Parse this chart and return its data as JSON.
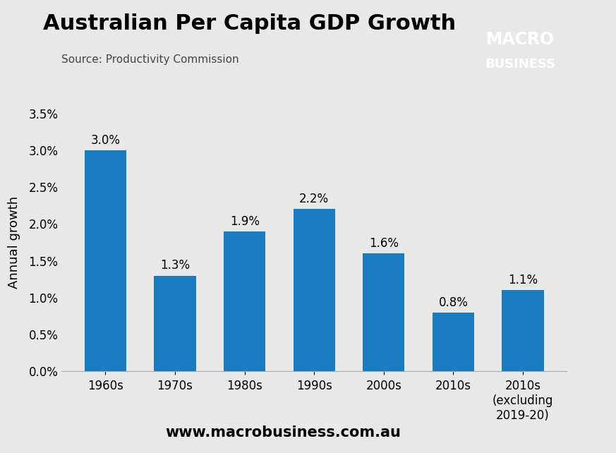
{
  "title": "Australian Per Capita GDP Growth",
  "source": "Source: Productivity Commission",
  "categories": [
    "1960s",
    "1970s",
    "1980s",
    "1990s",
    "2000s",
    "2010s",
    "2010s\n(excluding\n2019-20)"
  ],
  "values": [
    3.0,
    1.3,
    1.9,
    2.2,
    1.6,
    0.8,
    1.1
  ],
  "labels": [
    "3.0%",
    "1.3%",
    "1.9%",
    "2.2%",
    "1.6%",
    "0.8%",
    "1.1%"
  ],
  "bar_color": "#1a7bbf",
  "ylabel": "Annual growth",
  "ylim": [
    0,
    3.5
  ],
  "yticks": [
    0.0,
    0.5,
    1.0,
    1.5,
    2.0,
    2.5,
    3.0,
    3.5
  ],
  "background_color": "#e8e8e8",
  "plot_bg_color": "#e8e8e8",
  "title_fontsize": 22,
  "label_fontsize": 12,
  "tick_fontsize": 12,
  "ylabel_fontsize": 13,
  "source_fontsize": 11,
  "website": "www.macrobusiness.com.au",
  "website_fontsize": 15,
  "macro_logo_text1": "MACRO",
  "macro_logo_text2": "BUSINESS",
  "macro_logo_bg": "#cc1111",
  "macro_logo_text_color": "#ffffff"
}
